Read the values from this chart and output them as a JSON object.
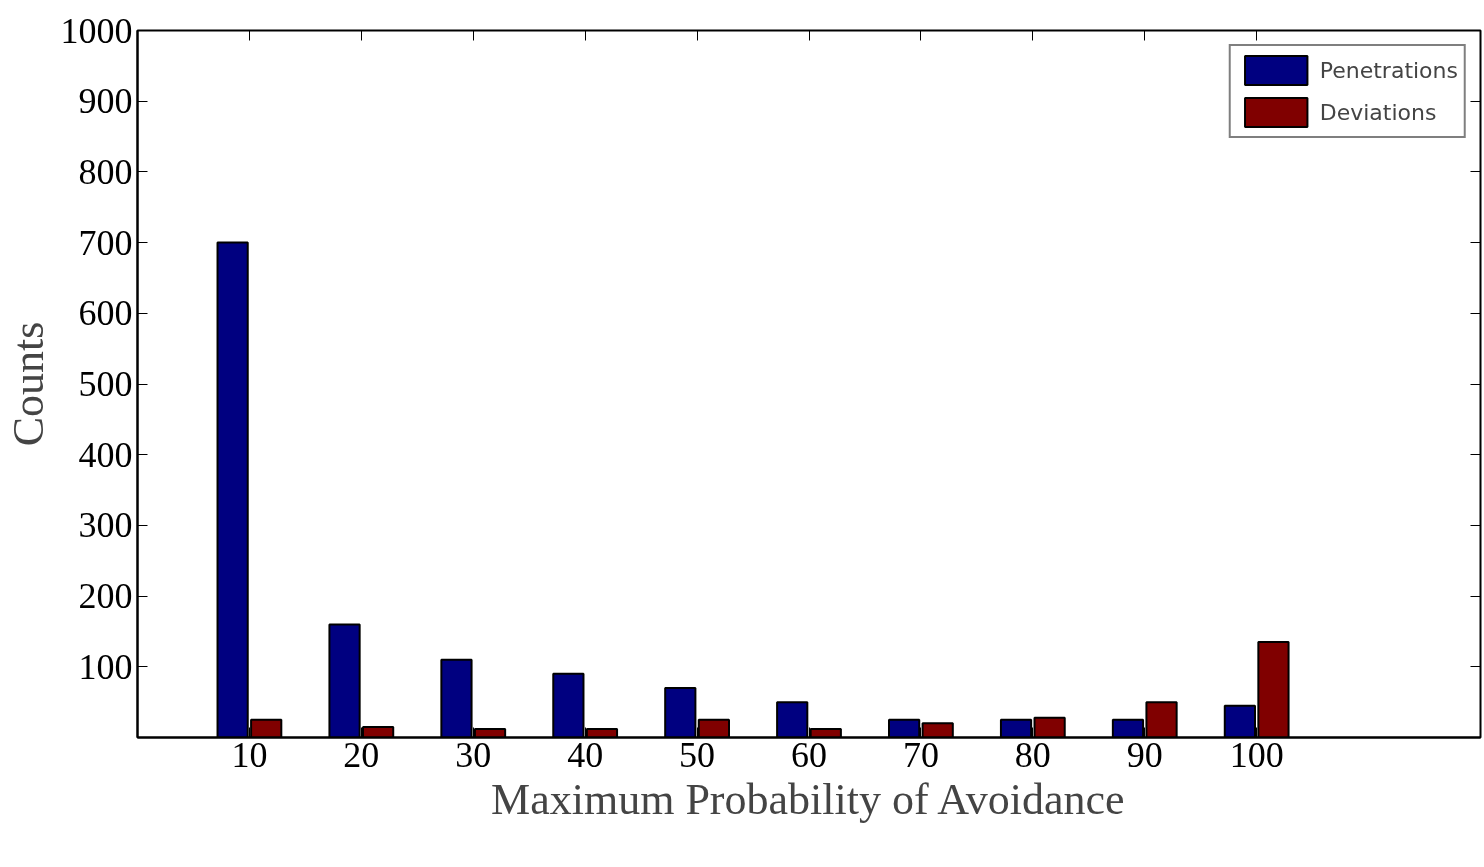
{
  "chart_data": {
    "type": "bar",
    "xlabel": "Maximum Probability of Avoidance",
    "ylabel": "Counts",
    "x": [
      10,
      20,
      30,
      40,
      50,
      60,
      70,
      80,
      90,
      100
    ],
    "series": [
      {
        "name": "Penetrations",
        "color": "#000080",
        "values": [
          700,
          160,
          110,
          90,
          70,
          50,
          25,
          25,
          25,
          45
        ]
      },
      {
        "name": "Deviations",
        "color": "#800000",
        "values": [
          25,
          15,
          12,
          12,
          25,
          12,
          20,
          28,
          50,
          135
        ]
      }
    ],
    "xlim": [
      0,
      120
    ],
    "ylim": [
      0,
      1000
    ],
    "xticks": [
      10,
      20,
      30,
      40,
      50,
      60,
      70,
      80,
      90,
      100
    ],
    "yticks": [
      100,
      200,
      300,
      400,
      500,
      600,
      700,
      800,
      900,
      1000
    ],
    "grid": false,
    "legend": "top right"
  }
}
